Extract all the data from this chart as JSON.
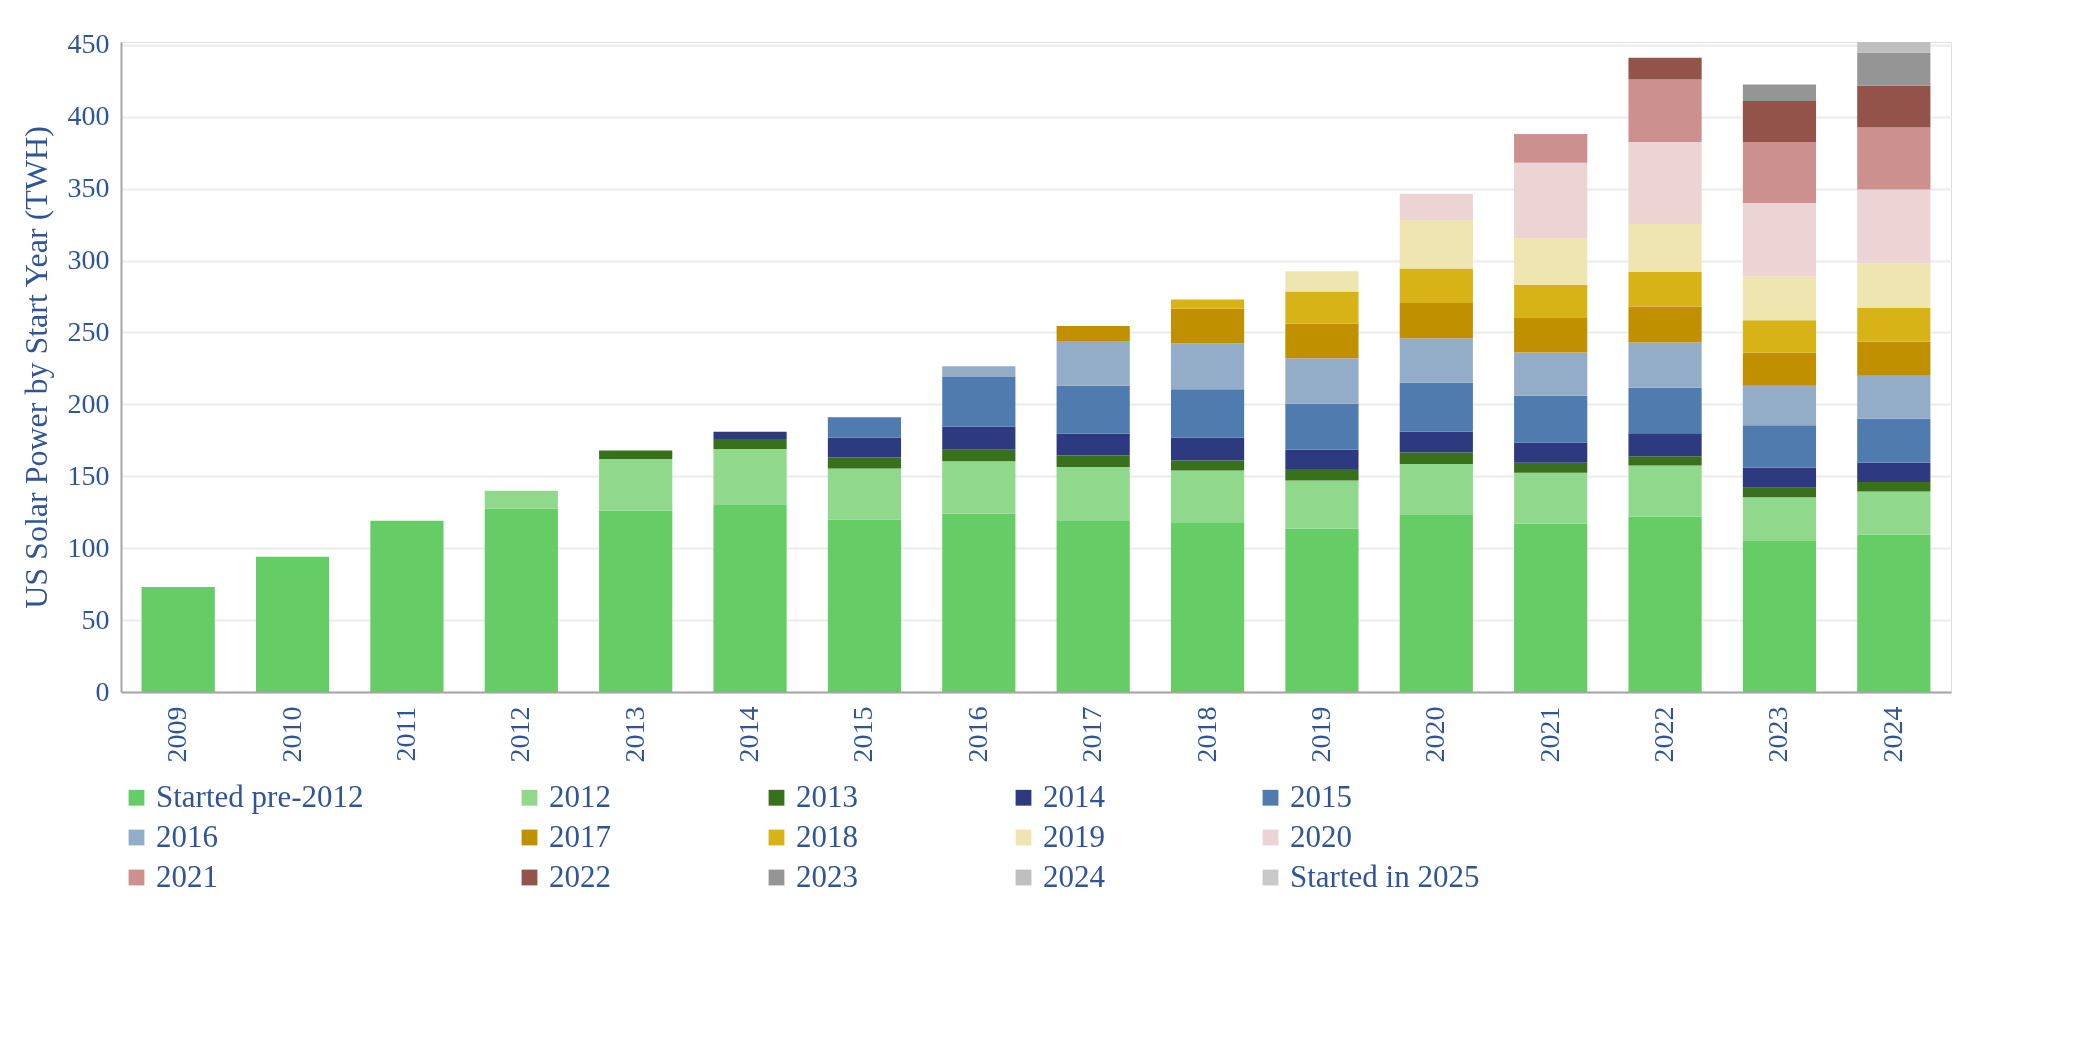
{
  "chart_data": {
    "type": "bar",
    "stacked": true,
    "ylabel": "US Solar Power by Start Year (TWH)",
    "categories": [
      "2009",
      "2010",
      "2011",
      "2012",
      "2013",
      "2014",
      "2015",
      "2016",
      "2017",
      "2018",
      "2019",
      "2020",
      "2021",
      "2022",
      "2023",
      "2024"
    ],
    "ylim": [
      0,
      452
    ],
    "yticks": [
      0,
      50,
      100,
      150,
      200,
      250,
      300,
      350,
      400,
      450
    ],
    "grid": "y",
    "legend": "bottom",
    "series": [
      {
        "name": "Started pre-2012",
        "color": "#66cc66",
        "values": [
          73,
          94,
          119,
          127.5,
          126,
          130,
          120,
          124,
          119.5,
          118,
          113.5,
          123,
          117,
          122,
          105,
          109.5
        ]
      },
      {
        "name": "2012",
        "color": "#90d98c",
        "values": [
          null,
          null,
          null,
          12.5,
          36,
          39,
          35.5,
          36.5,
          37,
          36,
          33.5,
          35.5,
          35.5,
          35.5,
          30.5,
          30
        ]
      },
      {
        "name": "2013",
        "color": "#38701c",
        "values": [
          null,
          null,
          null,
          null,
          6,
          7,
          7.5,
          8,
          8,
          7,
          8,
          8,
          7,
          6.5,
          6.5,
          6.5
        ]
      },
      {
        "name": "2014",
        "color": "#2e3a80",
        "values": [
          null,
          null,
          null,
          null,
          null,
          5,
          14,
          16,
          15,
          16,
          13.5,
          14.5,
          14,
          16,
          14,
          13.5
        ]
      },
      {
        "name": "2015",
        "color": "#4f7baf",
        "values": [
          null,
          null,
          null,
          null,
          null,
          null,
          14,
          34.5,
          33.5,
          33.5,
          32,
          34,
          32.5,
          31.5,
          29.5,
          30.5
        ]
      },
      {
        "name": "2016",
        "color": "#93adc9",
        "values": [
          null,
          null,
          null,
          null,
          null,
          null,
          null,
          7.5,
          31,
          32,
          31.5,
          31,
          30,
          31.5,
          27.5,
          30
        ]
      },
      {
        "name": "2017",
        "color": "#c09000",
        "values": [
          null,
          null,
          null,
          null,
          null,
          null,
          null,
          null,
          10.5,
          24,
          24,
          24.5,
          24,
          25,
          23,
          23.5
        ]
      },
      {
        "name": "2018",
        "color": "#d8b318",
        "values": [
          null,
          null,
          null,
          null,
          null,
          null,
          null,
          null,
          null,
          6.5,
          22.5,
          24,
          23,
          24,
          22.5,
          23.5
        ]
      },
      {
        "name": "2019",
        "color": "#efe5b0",
        "values": [
          null,
          null,
          null,
          null,
          null,
          null,
          null,
          null,
          null,
          null,
          14,
          33.5,
          32.5,
          33.5,
          30.5,
          31
        ]
      },
      {
        "name": "2020",
        "color": "#ecd3d4",
        "values": [
          null,
          null,
          null,
          null,
          null,
          null,
          null,
          null,
          null,
          null,
          null,
          18.5,
          52.5,
          57,
          51,
          51.5
        ]
      },
      {
        "name": "2021",
        "color": "#cc908e",
        "values": [
          null,
          null,
          null,
          null,
          null,
          null,
          null,
          null,
          null,
          null,
          null,
          null,
          20,
          43.5,
          42.5,
          43
        ]
      },
      {
        "name": "2022",
        "color": "#94534a",
        "values": [
          null,
          null,
          null,
          null,
          null,
          null,
          null,
          null,
          null,
          null,
          null,
          null,
          null,
          15,
          28.5,
          29
        ]
      },
      {
        "name": "2023",
        "color": "#959595",
        "values": [
          null,
          null,
          null,
          null,
          null,
          null,
          null,
          null,
          null,
          null,
          null,
          null,
          null,
          null,
          11.5,
          23
        ]
      },
      {
        "name": "2024",
        "color": "#bfbfbf",
        "values": [
          null,
          null,
          null,
          null,
          null,
          null,
          null,
          null,
          null,
          null,
          null,
          null,
          null,
          null,
          null,
          7.5
        ]
      },
      {
        "name": "Started in 2025",
        "color": "#c9c9c9",
        "values": [
          null,
          null,
          null,
          null,
          null,
          null,
          null,
          null,
          null,
          null,
          null,
          null,
          null,
          null,
          null,
          null
        ]
      }
    ]
  }
}
